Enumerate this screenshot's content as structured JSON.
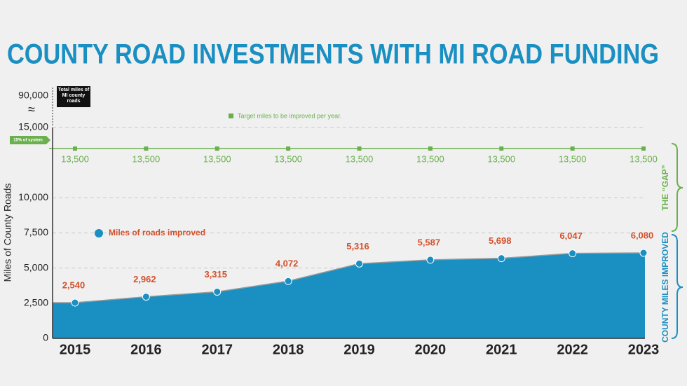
{
  "chart_data": {
    "type": "area",
    "title": "COUNTY ROAD INVESTMENTS WITH MI ROAD FUNDING",
    "y_label": "Miles of County Roads",
    "categories": [
      "2015",
      "2016",
      "2017",
      "2018",
      "2019",
      "2020",
      "2021",
      "2022",
      "2023"
    ],
    "series": [
      {
        "name": "Miles of roads improved",
        "color": "#d4502a",
        "area_color": "#1a8fc2",
        "values": [
          2540,
          2962,
          3315,
          4072,
          5316,
          5587,
          5698,
          6047,
          6080
        ],
        "value_labels": [
          "2,540",
          "2,962",
          "3,315",
          "4,072",
          "5,316",
          "5,587",
          "5,698",
          "6,047",
          "6,080"
        ]
      },
      {
        "name": "Target miles to be improved per year.",
        "color": "#6ab04c",
        "values": [
          13500,
          13500,
          13500,
          13500,
          13500,
          13500,
          13500,
          13500,
          13500
        ],
        "value_labels": [
          "13,500",
          "13,500",
          "13,500",
          "13,500",
          "13,500",
          "13,500",
          "13,500",
          "13,500",
          "13,500"
        ]
      }
    ],
    "ylim": [
      0,
      15000
    ],
    "yticks": [
      0,
      {
        "value": 2500,
        "label": "2,500"
      },
      {
        "value": 5000,
        "label": "5,000"
      },
      {
        "value": 7500,
        "label": "7,500"
      },
      {
        "value": 10000,
        "label": "10,000"
      },
      {
        "value": 15000,
        "label": "15,000"
      }
    ],
    "axis_break_tick": {
      "value": 90000,
      "label": "90,000"
    },
    "grid": true,
    "annotations": {
      "total_callout": "Total miles of MI county roads",
      "system_tag": "15% of system",
      "gap_label": "THE “GAP”",
      "improved_label": "COUNTY MILES IMPROVED"
    }
  }
}
